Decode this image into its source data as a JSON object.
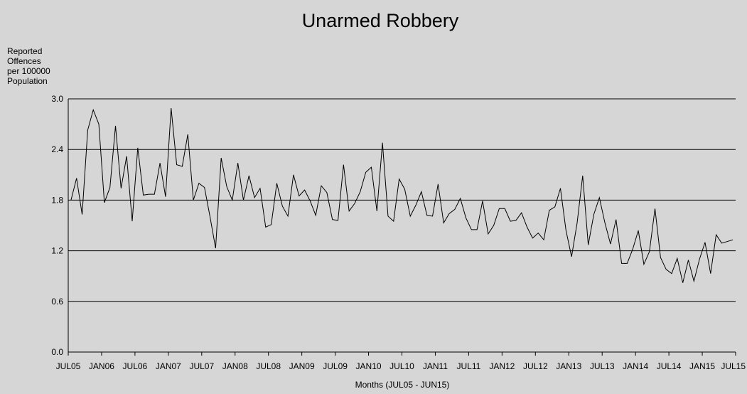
{
  "chart_data": {
    "type": "line",
    "title": "Unarmed Robbery",
    "ylabel": [
      "Reported",
      "Offences",
      "per 100000",
      "Population"
    ],
    "xlabel": "Months (JUL05 - JUN15)",
    "ylim": [
      0,
      3.0
    ],
    "yticks": [
      0.0,
      0.6,
      1.2,
      1.8,
      2.4,
      3.0
    ],
    "ytick_labels": [
      "0.0",
      "0.6",
      "1.2",
      "1.8",
      "2.4",
      "3.0"
    ],
    "grid": true,
    "x_tick_labels": [
      "JUL05",
      "JAN06",
      "JUL06",
      "JAN07",
      "JUL07",
      "JAN08",
      "JUL08",
      "JAN09",
      "JUL09",
      "JAN10",
      "JUL10",
      "JAN11",
      "JUL11",
      "JAN12",
      "JUL12",
      "JAN13",
      "JUL13",
      "JAN14",
      "JUL14",
      "JAN15",
      "JUL15"
    ],
    "series": [
      {
        "values": [
          1.8,
          2.06,
          1.63,
          2.63,
          2.87,
          2.7,
          1.77,
          1.95,
          2.68,
          1.94,
          2.32,
          1.55,
          2.42,
          1.86,
          1.87,
          1.87,
          2.24,
          1.84,
          2.89,
          2.22,
          2.2,
          2.58,
          1.8,
          2.0,
          1.95,
          1.6,
          1.23,
          2.3,
          1.96,
          1.8,
          2.24,
          1.8,
          2.09,
          1.83,
          1.94,
          1.48,
          1.51,
          2.0,
          1.73,
          1.61,
          2.1,
          1.85,
          1.92,
          1.79,
          1.62,
          1.97,
          1.89,
          1.57,
          1.56,
          2.22,
          1.67,
          1.76,
          1.9,
          2.13,
          2.19,
          1.67,
          2.48,
          1.61,
          1.55,
          2.05,
          1.93,
          1.61,
          1.74,
          1.9,
          1.62,
          1.61,
          1.99,
          1.53,
          1.64,
          1.69,
          1.82,
          1.59,
          1.45,
          1.45,
          1.79,
          1.4,
          1.5,
          1.7,
          1.7,
          1.55,
          1.56,
          1.65,
          1.48,
          1.35,
          1.41,
          1.33,
          1.68,
          1.72,
          1.94,
          1.44,
          1.13,
          1.53,
          2.09,
          1.27,
          1.63,
          1.83,
          1.53,
          1.28,
          1.57,
          1.05,
          1.05,
          1.22,
          1.44,
          1.04,
          1.19,
          1.7,
          1.12,
          0.98,
          0.93,
          1.11,
          0.82,
          1.09,
          0.84,
          1.1,
          1.3,
          0.93,
          1.39,
          1.29,
          1.31,
          1.33
        ]
      }
    ]
  }
}
